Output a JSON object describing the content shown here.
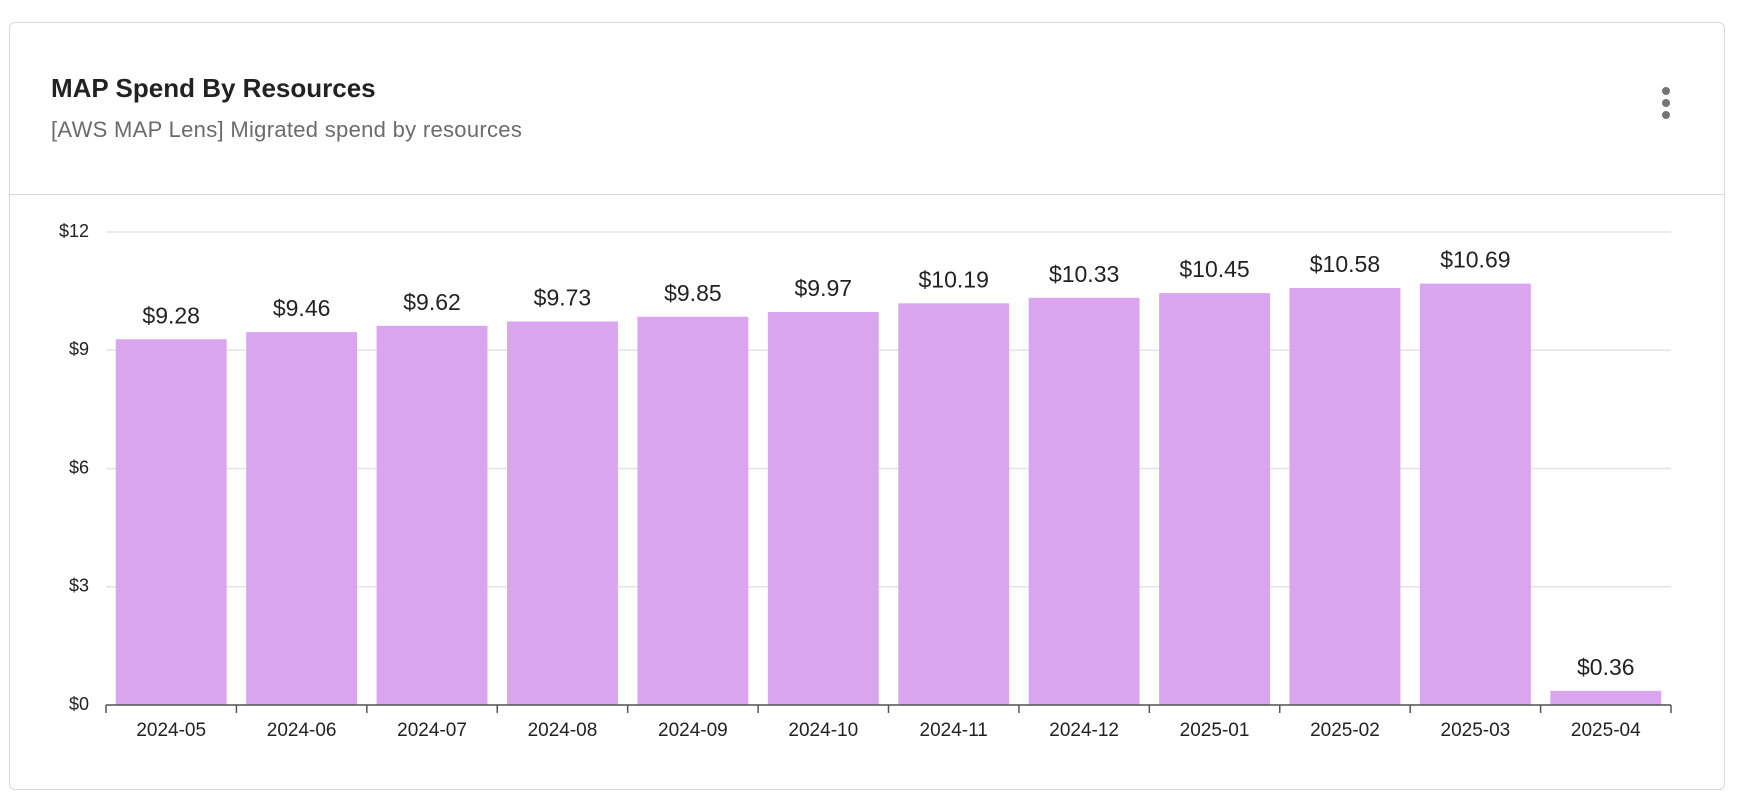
{
  "chart_data": {
    "type": "bar",
    "title": "MAP Spend By Resources",
    "subtitle": "[AWS MAP Lens] Migrated spend by resources",
    "categories": [
      "2024-05",
      "2024-06",
      "2024-07",
      "2024-08",
      "2024-09",
      "2024-10",
      "2024-11",
      "2024-12",
      "2025-01",
      "2025-02",
      "2025-03",
      "2025-04"
    ],
    "values": [
      9.28,
      9.46,
      9.62,
      9.73,
      9.85,
      9.97,
      10.19,
      10.33,
      10.45,
      10.58,
      10.69,
      0.36
    ],
    "value_labels": [
      "$9.28",
      "$9.46",
      "$9.62",
      "$9.73",
      "$9.85",
      "$9.97",
      "$10.19",
      "$10.33",
      "$10.45",
      "$10.58",
      "$10.69",
      "$0.36"
    ],
    "color": "#d9a5ee",
    "ylim": [
      0,
      12
    ],
    "yticks": [
      {
        "value": 0,
        "label": "$0"
      },
      {
        "value": 3,
        "label": "$3"
      },
      {
        "value": 6,
        "label": "$6"
      },
      {
        "value": 9,
        "label": "$9"
      },
      {
        "value": 12,
        "label": "$12"
      }
    ],
    "grid": true
  }
}
